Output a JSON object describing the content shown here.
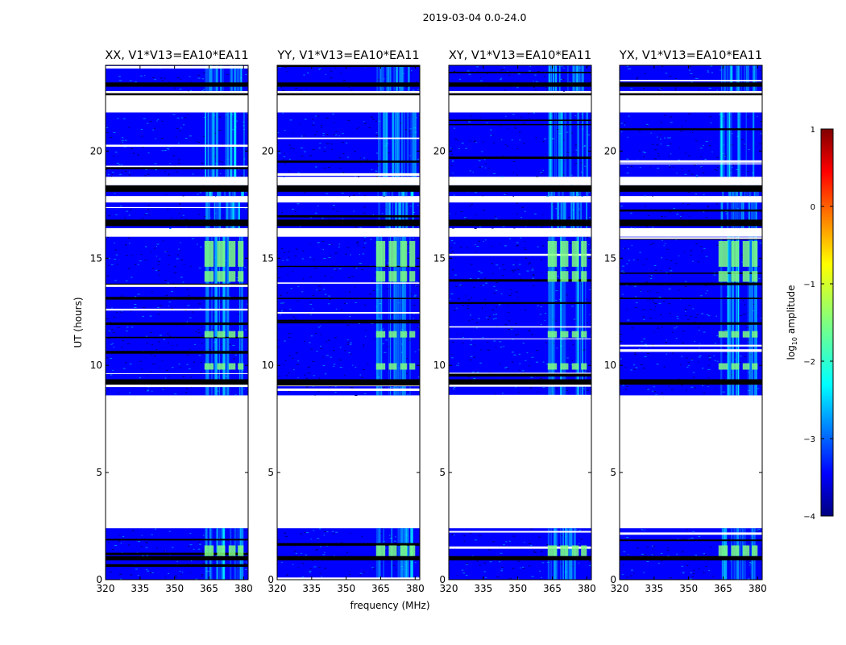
{
  "figure": {
    "suptitle": "2019-03-04 0.0-24.0",
    "xlabel": "frequency (MHz)",
    "ylabel": "UT (hours)"
  },
  "colors": {
    "cmap": [
      "#00007f",
      "#0000ff",
      "#007fff",
      "#00ffff",
      "#7fff7f",
      "#ffff00",
      "#ff7f00",
      "#ff0000",
      "#7f0000"
    ]
  },
  "chart_data": {
    "type": "heatmap",
    "date": "2019-03-04",
    "time_range_hours": [
      0.0,
      24.0
    ],
    "xlim": [
      320,
      382
    ],
    "ylim": [
      0,
      24
    ],
    "xticks": [
      320,
      335,
      350,
      365,
      380
    ],
    "yticks": [
      0,
      5,
      10,
      15,
      20
    ],
    "panels": [
      {
        "title": "XX, V1*V13=EA10*EA11"
      },
      {
        "title": "YY, V1*V13=EA10*EA11"
      },
      {
        "title": "XY, V1*V13=EA10*EA11"
      },
      {
        "title": "YX, V1*V13=EA10*EA11"
      }
    ],
    "data_blocks_ut": [
      [
        0.0,
        2.4
      ],
      [
        8.6,
        16.0
      ],
      [
        16.4,
        17.6
      ],
      [
        17.9,
        18.4
      ],
      [
        18.8,
        21.8
      ],
      [
        22.8,
        24.0
      ]
    ],
    "colorbar": {
      "label": "log10 amplitude",
      "range": [
        -4,
        1
      ],
      "ticks": [
        "1",
        "0",
        "−1",
        "−2",
        "−3",
        "−4"
      ]
    }
  }
}
